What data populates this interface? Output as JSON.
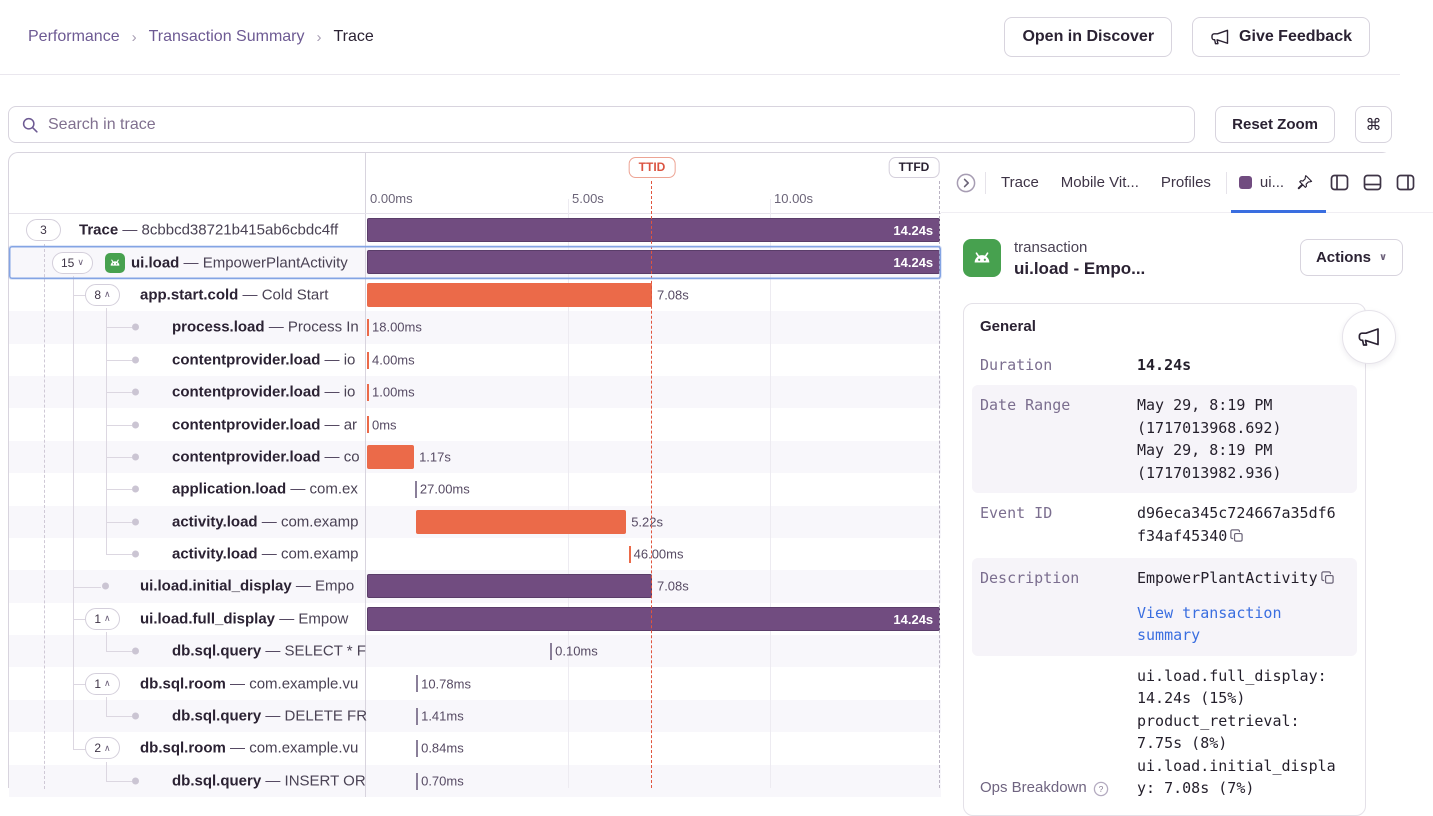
{
  "theme": {
    "purple": "#714c80",
    "orange": "#eb6a49",
    "tick_gray": "#8a7f99",
    "android_green": "#47a14f",
    "link_blue": "#3a6ee0",
    "ttid_red": "#db5442",
    "selected_blue": "#84a4e4"
  },
  "breadcrumb": {
    "items": [
      "Performance",
      "Transaction Summary",
      "Trace"
    ],
    "separator": "›"
  },
  "header": {
    "open_in_discover": "Open in Discover",
    "give_feedback": "Give Feedback"
  },
  "toolbar": {
    "search_placeholder": "Search in trace",
    "reset_zoom": "Reset Zoom",
    "shortcut": "⌘"
  },
  "timeline": {
    "total_s": 14.24,
    "ticks": [
      {
        "label": "0.00ms",
        "s": 0
      },
      {
        "label": "5.00s",
        "s": 5
      },
      {
        "label": "10.00s",
        "s": 10
      }
    ],
    "markers": [
      {
        "label": "TTID",
        "s": 7.08,
        "color": "red"
      },
      {
        "label": "TTFD",
        "s": 14.24,
        "color": "gray"
      }
    ]
  },
  "separator": "—",
  "rows": [
    {
      "level": 0,
      "count": "3",
      "op": "Trace",
      "desc": "8cbbcd38721b415ab6cbdc4ff",
      "bar": {
        "shape": "bar",
        "color": "purple",
        "start_s": 0,
        "dur_s": 14.24,
        "label": "14.24s",
        "label_pos": "inside"
      }
    },
    {
      "level": 1,
      "count": "15",
      "caret": "∨",
      "icon": "android",
      "selected": true,
      "op": "ui.load",
      "desc": "EmpowerPlantActivity",
      "bar": {
        "shape": "bar",
        "color": "purple",
        "start_s": 0,
        "dur_s": 14.24,
        "label": "14.24s",
        "label_pos": "inside"
      }
    },
    {
      "level": 2,
      "count": "8",
      "caret": "∧",
      "op": "app.start.cold",
      "desc": "Cold Start",
      "bar": {
        "shape": "bar",
        "color": "orange",
        "start_s": 0,
        "dur_s": 7.08,
        "label": "7.08s",
        "label_pos": "outside"
      }
    },
    {
      "level": 3,
      "dot": true,
      "op": "process.load",
      "desc": "Process In",
      "bar": {
        "shape": "tick",
        "color": "orange",
        "start_s": 0,
        "label": "18.00ms"
      }
    },
    {
      "level": 3,
      "dot": true,
      "op": "contentprovider.load",
      "desc": "io",
      "bar": {
        "shape": "tick",
        "color": "orange",
        "start_s": 0,
        "label": "4.00ms"
      }
    },
    {
      "level": 3,
      "dot": true,
      "op": "contentprovider.load",
      "desc": "io",
      "bar": {
        "shape": "tick",
        "color": "orange",
        "start_s": 0,
        "label": "1.00ms"
      }
    },
    {
      "level": 3,
      "dot": true,
      "op": "contentprovider.load",
      "desc": "ar",
      "bar": {
        "shape": "tick",
        "color": "orange",
        "start_s": 0,
        "label": "0ms"
      }
    },
    {
      "level": 3,
      "dot": true,
      "op": "contentprovider.load",
      "desc": "co",
      "bar": {
        "shape": "bar",
        "color": "orange",
        "start_s": 0,
        "dur_s": 1.17,
        "label": "1.17s",
        "label_pos": "outside"
      }
    },
    {
      "level": 3,
      "dot": true,
      "op": "application.load",
      "desc": "com.ex",
      "bar": {
        "shape": "tick",
        "color": "gray",
        "start_s": 1.19,
        "label": "27.00ms"
      }
    },
    {
      "level": 3,
      "dot": true,
      "op": "activity.load",
      "desc": "com.examp",
      "bar": {
        "shape": "bar",
        "color": "orange",
        "start_s": 1.22,
        "dur_s": 5.22,
        "label": "5.22s",
        "label_pos": "outside"
      }
    },
    {
      "level": 3,
      "dot": true,
      "op": "activity.load",
      "desc": "com.examp",
      "bar": {
        "shape": "tick",
        "color": "orange",
        "start_s": 6.5,
        "label": "46.00ms"
      }
    },
    {
      "level": 2,
      "dot": true,
      "op": "ui.load.initial_display",
      "desc": "Empo",
      "bar": {
        "shape": "bar",
        "color": "purple",
        "start_s": 0,
        "dur_s": 7.08,
        "label": "7.08s",
        "label_pos": "outside"
      }
    },
    {
      "level": 2,
      "count": "1",
      "caret": "∧",
      "op": "ui.load.full_display",
      "desc": "Empow",
      "bar": {
        "shape": "bar",
        "color": "purple",
        "start_s": 0,
        "dur_s": 14.24,
        "label": "14.24s",
        "label_pos": "inside"
      }
    },
    {
      "level": 3,
      "dot": true,
      "op": "db.sql.query",
      "desc": "SELECT * F",
      "bar": {
        "shape": "tick",
        "color": "gray",
        "start_s": 4.55,
        "label": "0.10ms"
      }
    },
    {
      "level": 2,
      "count": "1",
      "caret": "∧",
      "op": "db.sql.room",
      "desc": "com.example.vu",
      "bar": {
        "shape": "tick",
        "color": "gray",
        "start_s": 1.22,
        "label": "10.78ms"
      }
    },
    {
      "level": 3,
      "dot": true,
      "op": "db.sql.query",
      "desc": "DELETE FR",
      "bar": {
        "shape": "tick",
        "color": "gray",
        "start_s": 1.22,
        "label": "1.41ms"
      }
    },
    {
      "level": 2,
      "count": "2",
      "caret": "∧",
      "op": "db.sql.room",
      "desc": "com.example.vu",
      "bar": {
        "shape": "tick",
        "color": "gray",
        "start_s": 1.22,
        "label": "0.84ms"
      }
    },
    {
      "level": 3,
      "dot": true,
      "op": "db.sql.query",
      "desc": "INSERT OR",
      "bar": {
        "shape": "tick",
        "color": "gray",
        "start_s": 1.22,
        "label": "0.70ms"
      }
    }
  ],
  "drawer": {
    "tabs": {
      "items": [
        "Trace",
        "Mobile Vit...",
        "Profiles"
      ],
      "active_label": "ui..."
    },
    "transaction": {
      "type_label": "transaction",
      "title": "ui.load - Empo...",
      "actions_label": "Actions"
    },
    "general": {
      "heading": "General",
      "rows": [
        {
          "label": "Duration",
          "value": "14.24s",
          "bold": true
        },
        {
          "label": "Date Range",
          "alt": true,
          "lines": [
            "May 29, 8:19 PM (1717013968.692)",
            "May 29, 8:19 PM (1717013982.936)"
          ]
        },
        {
          "label": "Event ID",
          "value": "d96eca345c724667a35df6f34af45340",
          "copy": true
        },
        {
          "label": "Description",
          "alt": true,
          "value": "EmpowerPlantActivity",
          "copy": true,
          "link": "View transaction summary"
        },
        {
          "label": "Ops Breakdown",
          "help": true,
          "label_bottom": true,
          "sans_label": true,
          "lines": [
            "ui.load.full_display: 14.24s (15%)",
            "product_retrieval: 7.75s (8%)",
            "ui.load.initial_display: 7.08s (7%)"
          ]
        }
      ]
    }
  }
}
